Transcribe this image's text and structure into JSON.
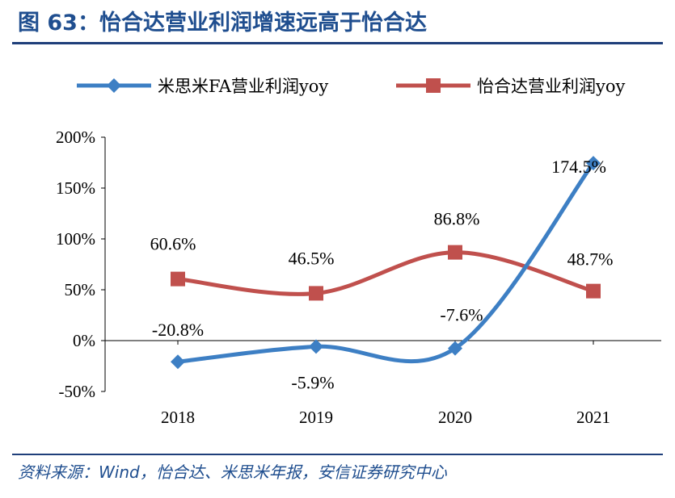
{
  "title": "图 63：怡合达营业利润增速远高于怡合达",
  "source": "资料来源：Wind，怡合达、米思米年报，安信证券研究中心",
  "colors": {
    "title": "#1f4e8f",
    "series1": "#3d7fc4",
    "series2": "#c0504d",
    "rule": "#1f3f7a"
  },
  "chart_data": {
    "type": "line",
    "categories": [
      "2018",
      "2019",
      "2020",
      "2021"
    ],
    "series": [
      {
        "name": "米思米FA营业利润yoy",
        "values": [
          -20.8,
          -5.9,
          -7.6,
          174.5
        ],
        "labels": [
          "-20.8%",
          "-5.9%",
          "-7.6%",
          "174.5%"
        ],
        "marker": "diamond",
        "color": "#3d7fc4"
      },
      {
        "name": "怡合达营业利润yoy",
        "values": [
          60.6,
          46.5,
          86.8,
          48.7
        ],
        "labels": [
          "60.6%",
          "46.5%",
          "86.8%",
          "48.7%"
        ],
        "marker": "square",
        "color": "#c0504d"
      }
    ],
    "yticks": [
      "200%",
      "150%",
      "100%",
      "50%",
      "0%",
      "-50%"
    ],
    "ylim": [
      -50,
      200
    ],
    "legend": "top",
    "grid": false,
    "smooth": true
  }
}
